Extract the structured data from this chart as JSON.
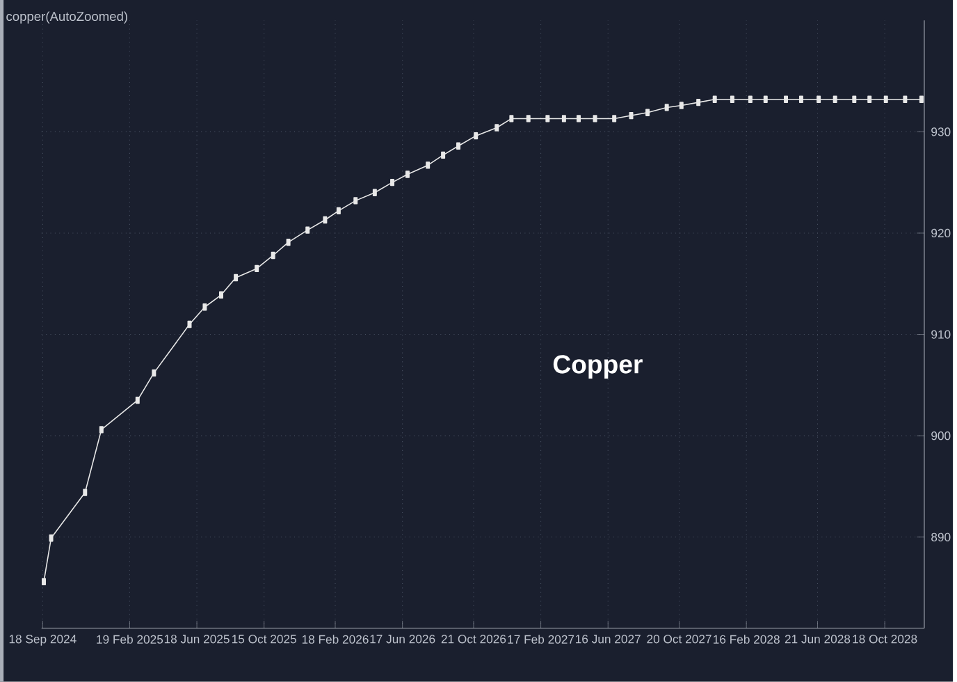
{
  "chart_data": {
    "type": "line",
    "title": "copper(AutoZoomed)",
    "annotations": [
      "Copper"
    ],
    "x": [
      "2024-09-20",
      "2024-10-03",
      "2024-12-02",
      "2024-12-31",
      "2025-03-05",
      "2025-04-03",
      "2025-06-05",
      "2025-07-02",
      "2025-07-31",
      "2025-08-26",
      "2025-10-02",
      "2025-10-31",
      "2025-11-27",
      "2025-12-31",
      "2026-01-31",
      "2026-02-24",
      "2026-03-26",
      "2026-04-29",
      "2026-05-30",
      "2026-06-26",
      "2026-08-01",
      "2026-08-28",
      "2026-09-24",
      "2026-10-25",
      "2026-12-01",
      "2026-12-27",
      "2027-01-26",
      "2027-03-01",
      "2027-03-30",
      "2027-04-25",
      "2027-05-24",
      "2027-06-27",
      "2027-07-27",
      "2027-08-25",
      "2027-09-28",
      "2027-10-24",
      "2027-11-23",
      "2027-12-22",
      "2028-01-22",
      "2028-02-23",
      "2028-03-21",
      "2028-04-26",
      "2028-05-23",
      "2028-06-23",
      "2028-07-22",
      "2028-08-25",
      "2028-09-21",
      "2028-10-20",
      "2028-11-23",
      "2028-12-22"
    ],
    "series": [
      {
        "color": "#e8e8e8",
        "values": [
          885.6,
          889.9,
          894.4,
          900.6,
          903.5,
          906.2,
          911.0,
          912.7,
          913.9,
          915.6,
          916.5,
          917.8,
          919.1,
          920.3,
          921.3,
          922.2,
          923.2,
          924.0,
          925.0,
          925.8,
          926.7,
          927.7,
          928.6,
          929.6,
          930.4,
          931.3,
          931.3,
          931.3,
          931.3,
          931.3,
          931.3,
          931.3,
          931.6,
          931.9,
          932.4,
          932.6,
          932.9,
          933.2,
          933.2,
          933.2,
          933.2,
          933.2,
          933.2,
          933.2,
          933.2,
          933.2,
          933.2,
          933.2,
          933.2,
          933.2
        ]
      }
    ],
    "xlim": [
      "2024-09-16",
      "2028-12-27"
    ],
    "ylim": [
      881,
      941
    ],
    "xticks": [
      {
        "value": "2024-09-18",
        "label": "18 Sep 2024"
      },
      {
        "value": "2025-02-19",
        "label": "19 Feb 2025"
      },
      {
        "value": "2025-06-18",
        "label": "18 Jun 2025"
      },
      {
        "value": "2025-10-15",
        "label": "15 Oct 2025"
      },
      {
        "value": "2026-02-18",
        "label": "18 Feb 2026"
      },
      {
        "value": "2026-06-17",
        "label": "17 Jun 2026"
      },
      {
        "value": "2026-10-21",
        "label": "21 Oct 2026"
      },
      {
        "value": "2027-02-17",
        "label": "17 Feb 2027"
      },
      {
        "value": "2027-06-16",
        "label": "16 Jun 2027"
      },
      {
        "value": "2027-10-20",
        "label": "20 Oct 2027"
      },
      {
        "value": "2028-02-16",
        "label": "16 Feb 2028"
      },
      {
        "value": "2028-06-21",
        "label": "21 Jun 2028"
      },
      {
        "value": "2028-10-18",
        "label": "18 Oct 2028"
      }
    ],
    "yticks": [
      890,
      900,
      910,
      920,
      930
    ],
    "grid": true,
    "marker": "square"
  }
}
